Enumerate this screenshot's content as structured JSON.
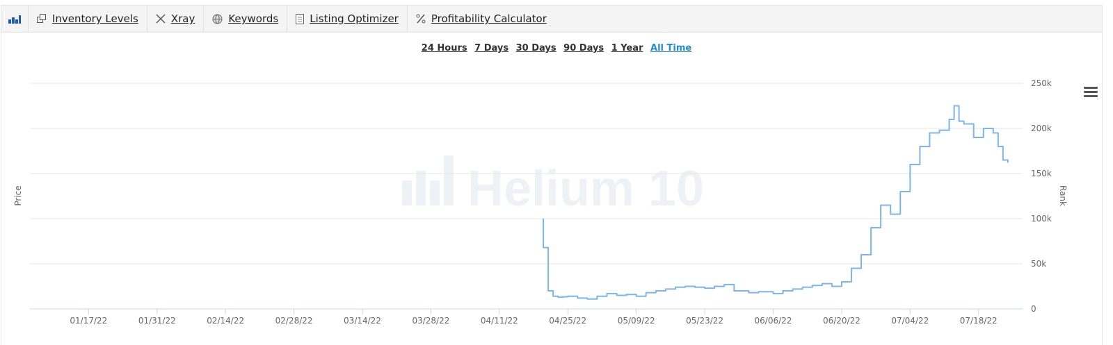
{
  "toolbar": {
    "items": [
      {
        "label": "Inventory Levels",
        "icon": "copy-icon"
      },
      {
        "label": "Xray",
        "icon": "x-icon"
      },
      {
        "label": "Keywords",
        "icon": "globe-icon"
      },
      {
        "label": "Listing Optimizer",
        "icon": "document-icon"
      },
      {
        "label": "Profitability Calculator",
        "icon": "percent-icon"
      }
    ]
  },
  "ranges": [
    "24 Hours",
    "7 Days",
    "30 Days",
    "90 Days",
    "1 Year",
    "All Time"
  ],
  "active_range": "All Time",
  "watermark": "Helium 10",
  "chart_data": {
    "type": "line",
    "ylabel_left": "Price",
    "ylabel_right": "Rank",
    "yticks_right": [
      "0",
      "50k",
      "100k",
      "150k",
      "200k",
      "250k"
    ],
    "ylim": [
      0,
      250000
    ],
    "xticks": [
      "01/17/22",
      "01/31/22",
      "02/14/22",
      "02/28/22",
      "03/14/22",
      "03/28/22",
      "04/11/22",
      "04/25/22",
      "05/09/22",
      "05/23/22",
      "06/06/22",
      "06/20/22",
      "07/04/22",
      "07/18/22"
    ],
    "xlim": [
      "2022-01-05",
      "2022-07-27"
    ],
    "grid": true,
    "series": [
      {
        "color": "#7cb5ec",
        "step": true,
        "x": [
          "2022-04-20",
          "2022-04-20",
          "2022-04-21",
          "2022-04-21",
          "2022-04-22",
          "2022-04-23",
          "2022-04-24",
          "2022-04-25",
          "2022-04-27",
          "2022-04-29",
          "2022-05-01",
          "2022-05-03",
          "2022-05-05",
          "2022-05-07",
          "2022-05-09",
          "2022-05-11",
          "2022-05-13",
          "2022-05-15",
          "2022-05-17",
          "2022-05-19",
          "2022-05-21",
          "2022-05-23",
          "2022-05-25",
          "2022-05-27",
          "2022-05-29",
          "2022-06-01",
          "2022-06-03",
          "2022-06-06",
          "2022-06-08",
          "2022-06-10",
          "2022-06-12",
          "2022-06-14",
          "2022-06-16",
          "2022-06-18",
          "2022-06-20",
          "2022-06-22",
          "2022-06-24",
          "2022-06-26",
          "2022-06-28",
          "2022-06-30",
          "2022-07-02",
          "2022-07-04",
          "2022-07-06",
          "2022-07-08",
          "2022-07-10",
          "2022-07-12",
          "2022-07-13",
          "2022-07-14",
          "2022-07-15",
          "2022-07-17",
          "2022-07-19",
          "2022-07-21",
          "2022-07-22",
          "2022-07-23",
          "2022-07-24"
        ],
        "values": [
          100000,
          68000,
          50000,
          20000,
          14000,
          13000,
          13500,
          14000,
          12000,
          11000,
          14000,
          17000,
          15000,
          16000,
          14000,
          18000,
          20000,
          22000,
          24000,
          25000,
          24000,
          23000,
          25000,
          27000,
          20000,
          18000,
          19000,
          17000,
          20000,
          22000,
          24000,
          26000,
          28000,
          25000,
          30000,
          45000,
          60000,
          90000,
          115000,
          105000,
          130000,
          160000,
          180000,
          195000,
          198000,
          210000,
          225000,
          208000,
          205000,
          190000,
          200000,
          195000,
          180000,
          165000,
          162000
        ]
      }
    ]
  }
}
